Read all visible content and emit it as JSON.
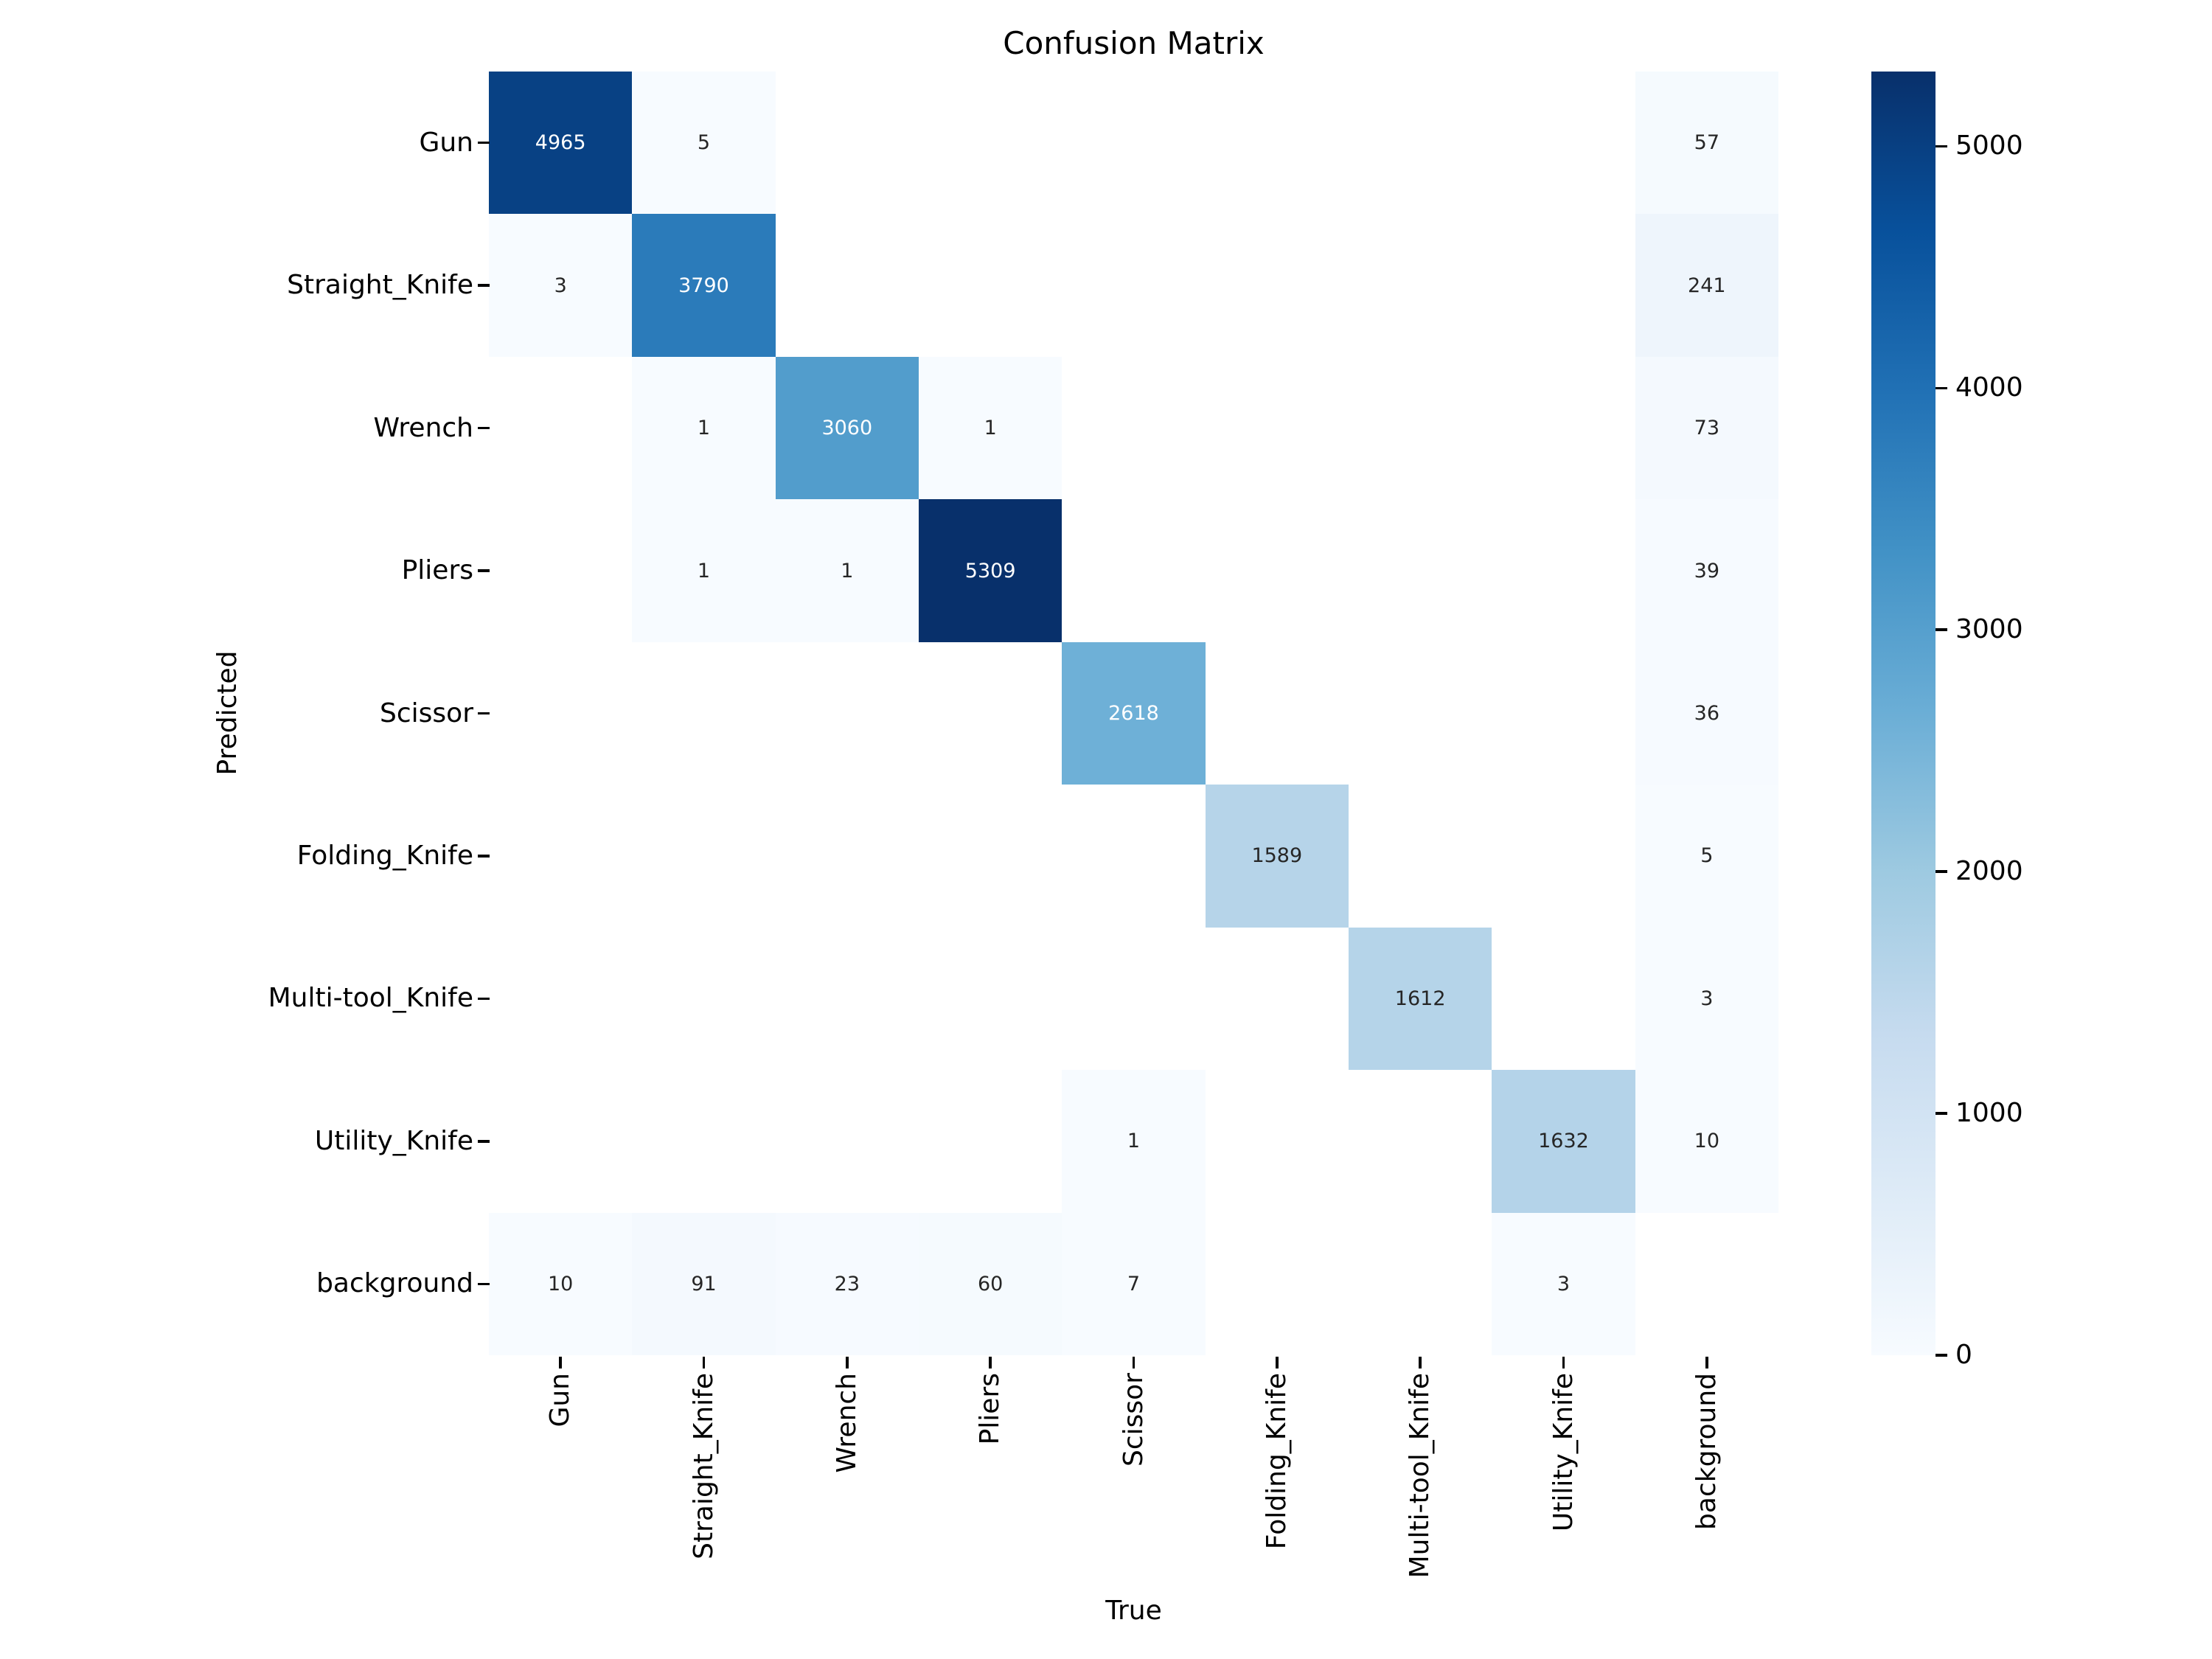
{
  "chart_data": {
    "type": "heatmap",
    "title": "Confusion Matrix",
    "xlabel": "True",
    "ylabel": "Predicted",
    "x_categories": [
      "Gun",
      "Straight_Knife",
      "Wrench",
      "Pliers",
      "Scissor",
      "Folding_Knife",
      "Multi-tool_Knife",
      "Utility_Knife",
      "background"
    ],
    "y_categories": [
      "Gun",
      "Straight_Knife",
      "Wrench",
      "Pliers",
      "Scissor",
      "Folding_Knife",
      "Multi-tool_Knife",
      "Utility_Knife",
      "background"
    ],
    "matrix": [
      [
        4965,
        5,
        null,
        null,
        null,
        null,
        null,
        null,
        57
      ],
      [
        3,
        3790,
        null,
        null,
        null,
        null,
        null,
        null,
        241
      ],
      [
        null,
        1,
        3060,
        1,
        null,
        null,
        null,
        null,
        73
      ],
      [
        null,
        1,
        1,
        5309,
        null,
        null,
        null,
        null,
        39
      ],
      [
        null,
        null,
        null,
        null,
        2618,
        null,
        null,
        null,
        36
      ],
      [
        null,
        null,
        null,
        null,
        null,
        1589,
        null,
        null,
        5
      ],
      [
        null,
        null,
        null,
        null,
        null,
        null,
        1612,
        null,
        3
      ],
      [
        null,
        null,
        null,
        null,
        1,
        null,
        null,
        1632,
        10
      ],
      [
        10,
        91,
        23,
        60,
        7,
        null,
        null,
        3,
        null
      ]
    ],
    "vmin": 0,
    "vmax": 5309,
    "colormap": "Blues",
    "colormap_stops": [
      "#f7fbff",
      "#deebf7",
      "#c6dbef",
      "#9ecae1",
      "#6baed6",
      "#4292c6",
      "#2171b5",
      "#08519c",
      "#08306b"
    ],
    "masked_color": "#ffffff",
    "annotation_colors": {
      "light": "#ffffff",
      "dark": "#262626"
    },
    "grid": false,
    "colorbar": {
      "position": "right",
      "ticks": [
        0,
        1000,
        2000,
        3000,
        4000,
        5000
      ]
    }
  }
}
